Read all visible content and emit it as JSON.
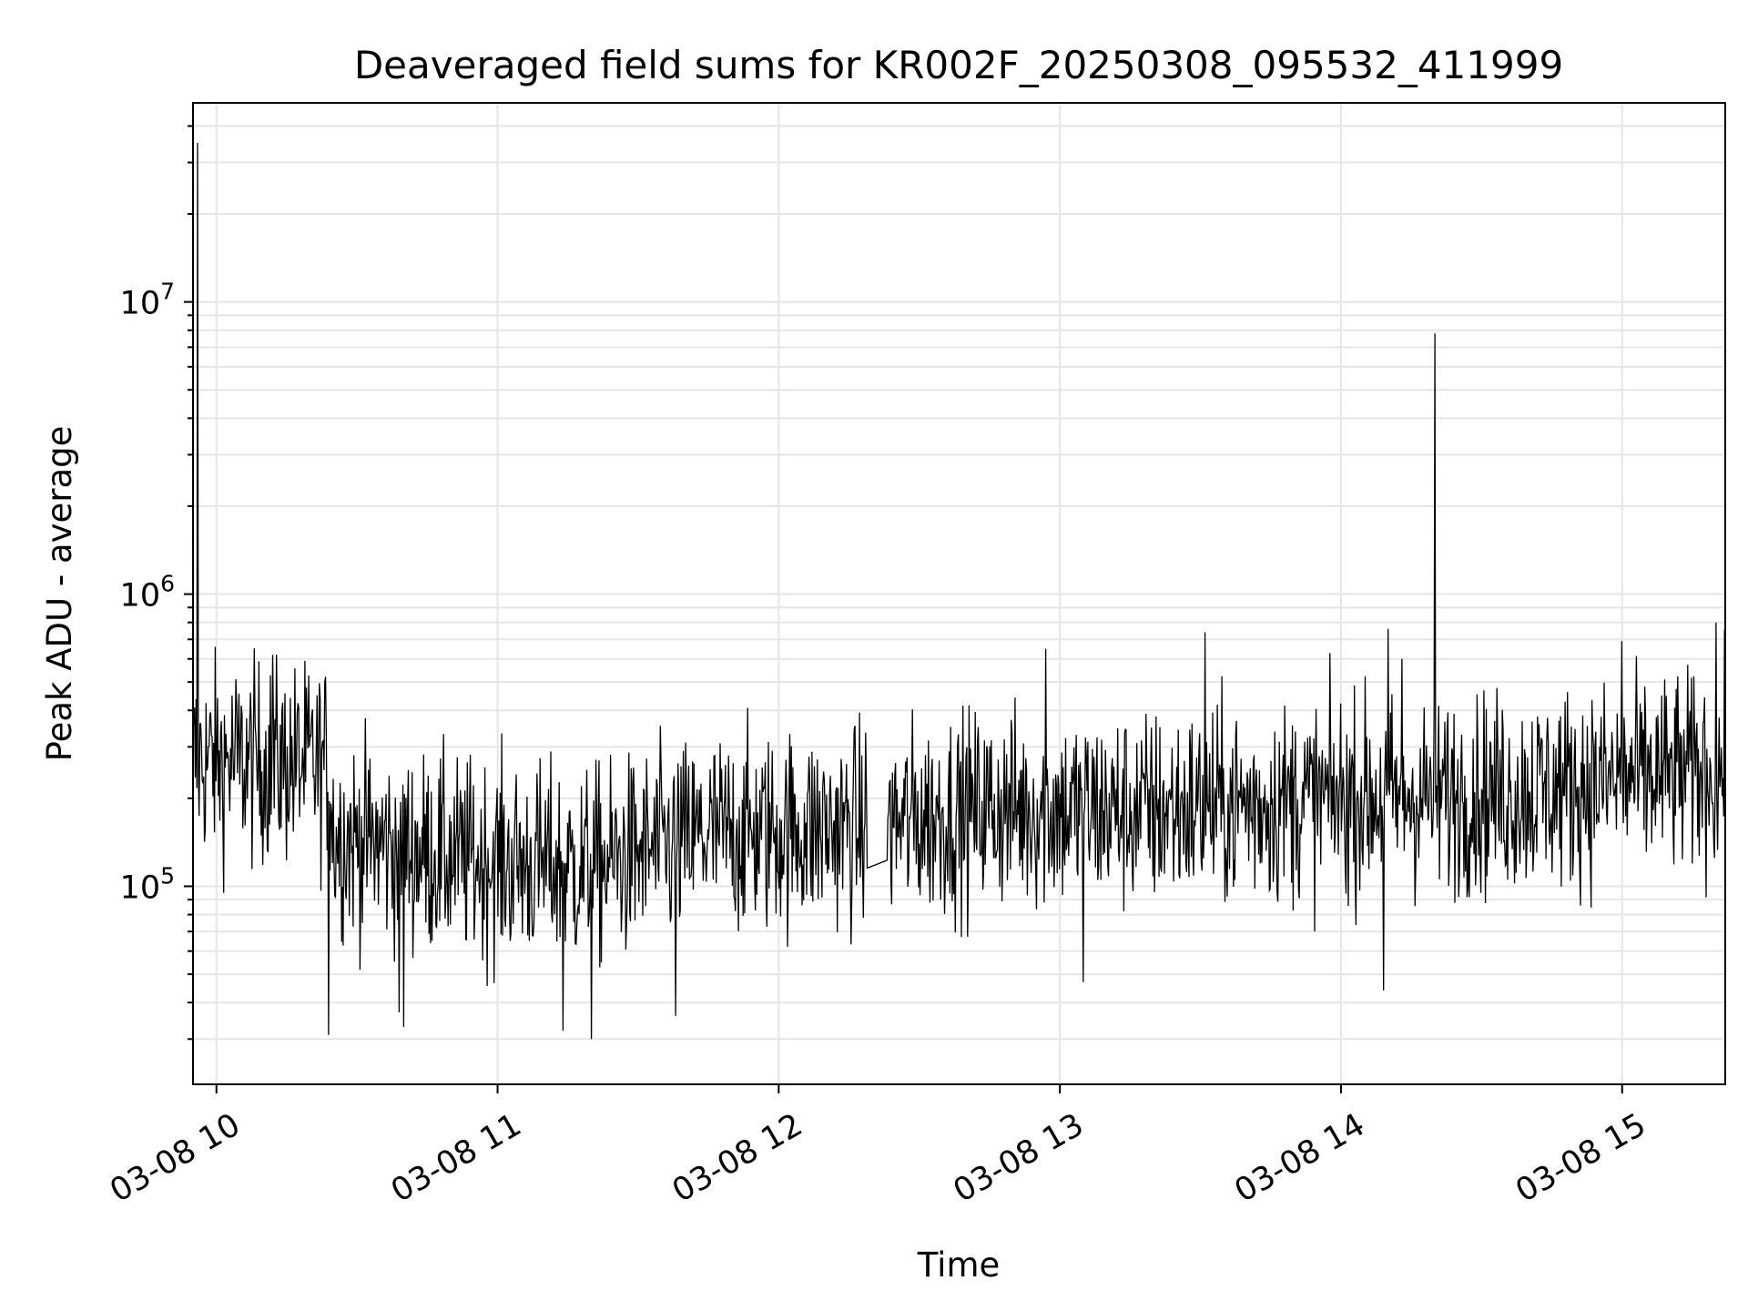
{
  "chart_data": {
    "type": "line",
    "title": "Deaveraged field sums for KR002F_20250308_095532_411999",
    "xlabel": "Time",
    "ylabel": "Peak ADU - average",
    "yscale": "log",
    "grid": true,
    "line_color": "#000000",
    "grid_color": "#e5e5e5",
    "x_tick_labels": [
      "03-08 10",
      "03-08 11",
      "03-08 12",
      "03-08 13",
      "03-08 14",
      "03-08 15"
    ],
    "x_ticks": [
      "2025-03-08 10:00",
      "2025-03-08 11:00",
      "2025-03-08 12:00",
      "2025-03-08 13:00",
      "2025-03-08 14:00",
      "2025-03-08 15:00"
    ],
    "y_ticks": [
      {
        "value": 100000,
        "base": "10",
        "exp": "5"
      },
      {
        "value": 1000000,
        "base": "10",
        "exp": "6"
      },
      {
        "value": 10000000,
        "base": "10",
        "exp": "7"
      }
    ],
    "xlim": [
      "2025-03-08 09:55",
      "2025-03-08 15:22"
    ],
    "ylim": [
      21000,
      48000000
    ],
    "series": [
      {
        "x_start": "2025-03-08 09:55",
        "x_end": "2025-03-08 15:22",
        "baseline_segments": [
          {
            "x": "2025-03-08 09:55",
            "y": 270000
          },
          {
            "x": "2025-03-08 10:24",
            "y": 260000
          },
          {
            "x": "2025-03-08 10:25",
            "y": 150000
          },
          {
            "x": "2025-03-08 10:50",
            "y": 125000
          },
          {
            "x": "2025-03-08 11:20",
            "y": 115000
          },
          {
            "x": "2025-03-08 11:45",
            "y": 150000
          },
          {
            "x": "2025-03-08 12:20",
            "y": 160000
          },
          {
            "x": "2025-03-08 12:45",
            "y": 185000
          },
          {
            "x": "2025-03-08 13:15",
            "y": 180000
          },
          {
            "x": "2025-03-08 14:00",
            "y": 200000
          },
          {
            "x": "2025-03-08 14:40",
            "y": 210000
          },
          {
            "x": "2025-03-08 15:00",
            "y": 230000
          },
          {
            "x": "2025-03-08 15:22",
            "y": 250000
          }
        ],
        "spikes": [
          {
            "x": "2025-03-08 09:56",
            "y": 35000000
          },
          {
            "x": "2025-03-08 14:20",
            "y": 7800000
          },
          {
            "x": "2025-03-08 13:31",
            "y": 740000
          },
          {
            "x": "2025-03-08 14:10",
            "y": 760000
          },
          {
            "x": "2025-03-08 15:20",
            "y": 800000
          },
          {
            "x": "2025-03-08 12:57",
            "y": 650000
          },
          {
            "x": "2025-03-08 15:00",
            "y": 690000
          },
          {
            "x": "2025-03-08 14:13",
            "y": 600000
          },
          {
            "x": "2025-03-08 10:12",
            "y": 620000
          },
          {
            "x": "2025-03-08 10:24",
            "y": 620000
          }
        ],
        "dips": [
          {
            "x": "2025-03-08 10:24",
            "y": 31000
          },
          {
            "x": "2025-03-08 11:20",
            "y": 30000
          },
          {
            "x": "2025-03-08 11:14",
            "y": 32000
          },
          {
            "x": "2025-03-08 10:40",
            "y": 33000
          },
          {
            "x": "2025-03-08 10:39",
            "y": 37000
          },
          {
            "x": "2025-03-08 11:38",
            "y": 36000
          },
          {
            "x": "2025-03-08 14:09",
            "y": 44000
          },
          {
            "x": "2025-03-08 13:05",
            "y": 47000
          }
        ],
        "gap": {
          "from": "2025-03-08 12:19",
          "to": "2025-03-08 12:23"
        }
      }
    ]
  }
}
